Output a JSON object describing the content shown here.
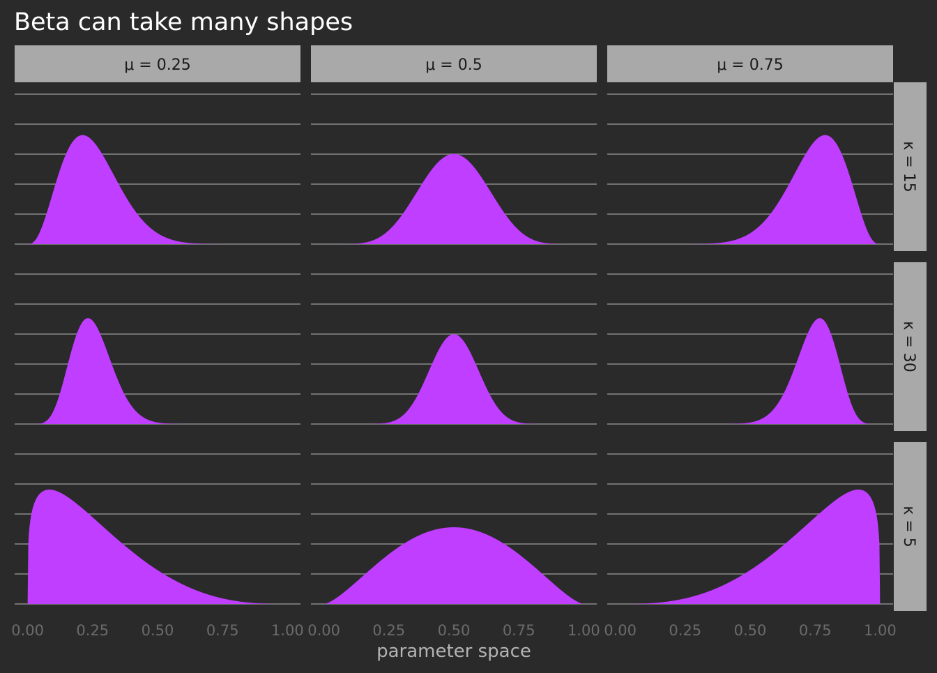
{
  "chart_data": {
    "type": "area",
    "title": "Beta can take many shapes",
    "xlabel": "parameter space",
    "ylabel": "",
    "xlim": [
      -0.05,
      1.05
    ],
    "x_ticks": [
      "0.00",
      "0.25",
      "0.50",
      "0.75",
      "1.00"
    ],
    "x_tick_values": [
      0,
      0.25,
      0.5,
      0.75,
      1
    ],
    "y_axis_labels_shown": false,
    "grid": "horizontal only",
    "facet_cols": [
      {
        "mu": 0.25,
        "label": "μ = 0.25"
      },
      {
        "mu": 0.5,
        "label": "μ = 0.5"
      },
      {
        "mu": 0.75,
        "label": "μ = 0.75"
      }
    ],
    "facet_rows": [
      {
        "kappa": 15,
        "label": "κ = 15"
      },
      {
        "kappa": 30,
        "label": "κ = 30"
      },
      {
        "kappa": 5,
        "label": "κ = 5"
      }
    ],
    "distribution": "Beta(mu*kappa, (1-mu)*kappa)",
    "row_ymax": [
      5.1,
      7.3,
      3.35
    ],
    "grid_lines_per_panel": 6,
    "colors": {
      "fill": "#bf3eff",
      "background": "#2a2a2a",
      "grid": "#8a8a8a",
      "strip": "#a9a9a9",
      "tick_text": "#6b6b6b",
      "title_text": "#ffffff",
      "axis_title_text": "#b3b3b3"
    }
  }
}
